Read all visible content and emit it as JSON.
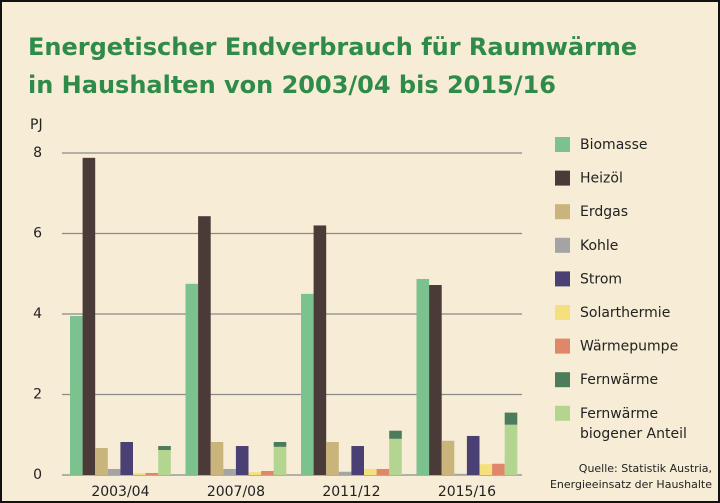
{
  "chart_data": {
    "type": "bar",
    "title": [
      "Energetischer Endverbrauch für Raumwärme",
      "in Haushalten von 2003/04 bis 2015/16"
    ],
    "y_label": "PJ",
    "categories": [
      "2003/04",
      "2007/08",
      "2011/12",
      "2015/16"
    ],
    "ylim": [
      0,
      8
    ],
    "yticks": [
      0,
      2,
      4,
      6,
      8
    ],
    "grid": true,
    "legend": "right",
    "stacked_fernwaerme": true,
    "series": [
      {
        "name": "Biomasse",
        "color": "#7cc28e",
        "values": [
          3.95,
          4.75,
          4.5,
          4.87
        ]
      },
      {
        "name": "Heizöl",
        "color": "#4a3b38",
        "values": [
          7.88,
          6.43,
          6.2,
          4.72
        ]
      },
      {
        "name": "Erdgas",
        "color": "#c9b57c",
        "values": [
          0.67,
          0.82,
          0.82,
          0.85
        ]
      },
      {
        "name": "Kohle",
        "color": "#a4a4a4",
        "values": [
          0.15,
          0.15,
          0.08,
          0.03
        ]
      },
      {
        "name": "Strom",
        "color": "#4b4073",
        "values": [
          0.82,
          0.72,
          0.72,
          0.97
        ]
      },
      {
        "name": "Solarthermie",
        "color": "#f5e07e",
        "values": [
          0.05,
          0.07,
          0.15,
          0.27
        ]
      },
      {
        "name": "Wärmepumpe",
        "color": "#e0876a",
        "values": [
          0.05,
          0.1,
          0.15,
          0.28
        ]
      },
      {
        "name": "Fernwärme",
        "color": "#4b7c5b",
        "values": [
          0.1,
          0.12,
          0.2,
          0.3
        ]
      },
      {
        "name": "Fernwärme biogener Anteil",
        "color": "#b4d590",
        "values": [
          0.62,
          0.7,
          0.9,
          1.25
        ]
      }
    ],
    "source": [
      "Quelle: Statistik Austria,",
      "Energieeinsatz der Haushalte"
    ]
  }
}
